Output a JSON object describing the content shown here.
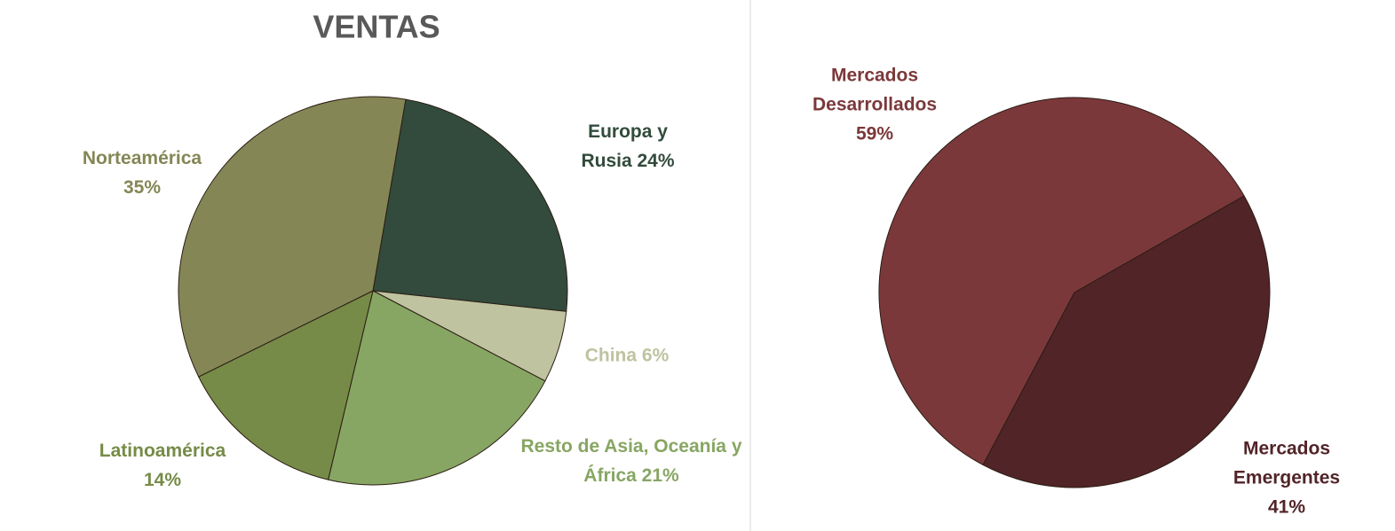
{
  "chart_data": [
    {
      "type": "pie",
      "title": "VENTAS",
      "categories": [
        "Europa y Rusia",
        "China",
        "Resto de Asia, Oceanía y África",
        "Latinoamérica",
        "Norteamérica"
      ],
      "values": [
        24,
        6,
        21,
        14,
        35
      ],
      "value_labels": [
        "24%",
        "6%",
        "21%",
        "14%",
        "35%"
      ],
      "colors": [
        "#324b3c",
        "#bfc3a0",
        "#87a663",
        "#768b47",
        "#848755"
      ]
    },
    {
      "type": "pie",
      "categories": [
        "Mercados Desarrollados",
        "Mercados Emergentes"
      ],
      "values": [
        59,
        41
      ],
      "value_labels": [
        "59%",
        "41%"
      ],
      "colors": [
        "#7b383a",
        "#512428"
      ]
    }
  ]
}
